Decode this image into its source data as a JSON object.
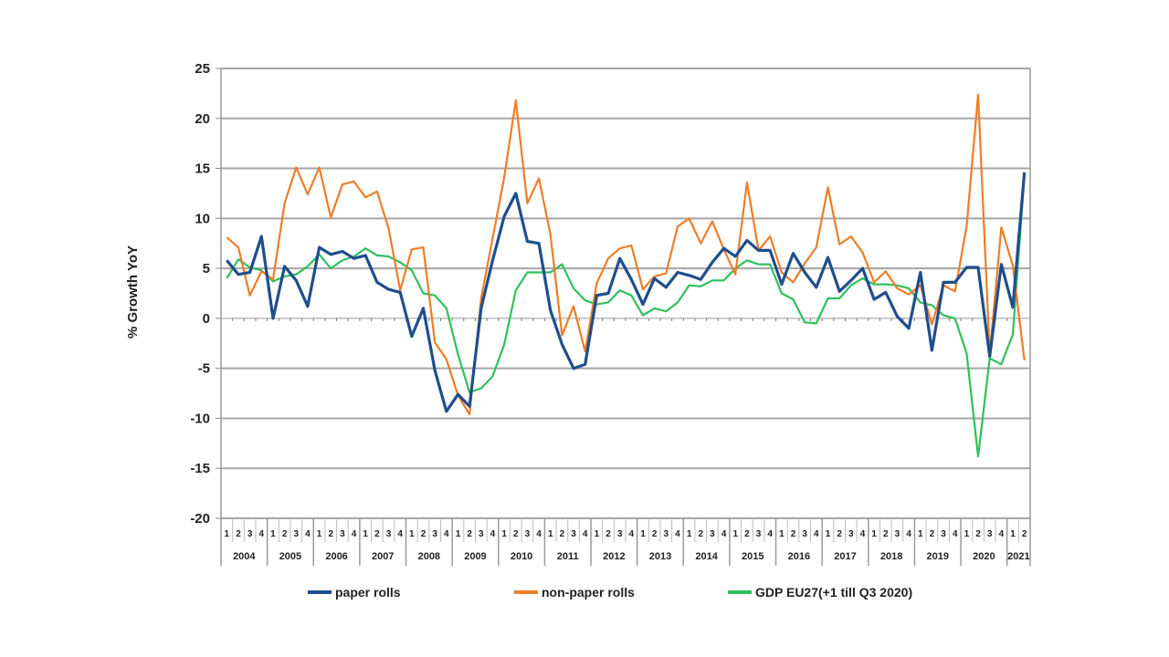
{
  "chart_data": {
    "type": "line",
    "title": "",
    "xlabel": "",
    "ylabel": "% Growth YoY",
    "ylim": [
      -20,
      25
    ],
    "yticks": [
      25,
      20,
      15,
      10,
      5,
      0,
      -5,
      -10,
      -15,
      -20
    ],
    "grid": true,
    "legend_position": "bottom",
    "years": [
      "2004",
      "2005",
      "2006",
      "2007",
      "2008",
      "2009",
      "2010",
      "2011",
      "2012",
      "2013",
      "2014",
      "2015",
      "2016",
      "2017",
      "2018",
      "2019",
      "2020",
      "2021"
    ],
    "quarter_labels": [
      "1",
      "2",
      "3",
      "4"
    ],
    "last_year_quarters": 2,
    "series": [
      {
        "name": "paper rolls",
        "color": "#1f4e8c",
        "values": [
          5.8,
          4.4,
          4.6,
          8.2,
          0.0,
          5.2,
          3.8,
          1.2,
          7.1,
          6.4,
          6.7,
          6.0,
          6.3,
          3.6,
          2.9,
          2.6,
          -1.8,
          1.0,
          -5.2,
          -9.3,
          -7.6,
          -8.8,
          1.0,
          5.8,
          10.2,
          12.5,
          7.7,
          7.5,
          0.8,
          -2.6,
          -5.0,
          -4.6,
          2.3,
          2.5,
          6.0,
          3.9,
          1.4,
          4.0,
          3.1,
          4.6,
          4.3,
          3.9,
          5.6,
          7.0,
          6.2,
          7.8,
          6.8,
          6.8,
          3.4,
          6.5,
          4.6,
          3.1,
          6.1,
          2.7,
          3.8,
          5.0,
          1.9,
          2.6,
          0.2,
          -1.0,
          4.6,
          -3.2,
          3.6,
          3.6,
          5.1,
          5.1,
          -3.8,
          5.4,
          1.1,
          14.6
        ]
      },
      {
        "name": "non-paper rolls",
        "color": "#ee7d26",
        "values": [
          8.1,
          7.1,
          2.3,
          4.7,
          3.9,
          11.5,
          15.1,
          12.4,
          15.1,
          10.1,
          13.4,
          13.7,
          12.1,
          12.7,
          9.0,
          2.8,
          6.9,
          7.1,
          -2.4,
          -4.1,
          -7.7,
          -9.6,
          2.0,
          8.0,
          14.1,
          21.8,
          11.5,
          14.0,
          8.4,
          -1.7,
          1.2,
          -3.3,
          3.5,
          6.0,
          7.0,
          7.3,
          2.9,
          4.2,
          4.5,
          9.2,
          10.0,
          7.5,
          9.7,
          6.9,
          4.4,
          13.6,
          6.8,
          8.2,
          4.6,
          3.6,
          5.5,
          7.1,
          13.1,
          7.4,
          8.2,
          6.6,
          3.6,
          4.7,
          3.0,
          2.4,
          3.3,
          -0.6,
          3.3,
          2.7,
          9.2,
          22.4,
          -3.6,
          9.1,
          5.3,
          -4.2
        ]
      },
      {
        "name": "GDP EU27(+1 till Q3 2020)",
        "color": "#2fc05c",
        "values": [
          4.0,
          5.9,
          5.1,
          4.8,
          3.7,
          4.2,
          4.4,
          5.2,
          6.4,
          5.0,
          5.8,
          6.2,
          7.0,
          6.3,
          6.2,
          5.6,
          4.8,
          2.5,
          2.3,
          1.0,
          -3.6,
          -7.4,
          -7.0,
          -5.8,
          -2.6,
          2.8,
          4.6,
          4.6,
          4.6,
          5.4,
          3.0,
          1.8,
          1.4,
          1.6,
          2.8,
          2.3,
          0.3,
          1.0,
          0.7,
          1.6,
          3.3,
          3.2,
          3.8,
          3.8,
          5.0,
          5.8,
          5.4,
          5.4,
          2.5,
          1.9,
          -0.4,
          -0.5,
          2.0,
          2.0,
          3.3,
          4.0,
          3.4,
          3.4,
          3.3,
          3.0,
          1.6,
          1.3,
          0.3,
          0.0,
          -3.5,
          -13.8,
          -4.0,
          -4.6,
          -1.6,
          14.3
        ]
      }
    ]
  }
}
